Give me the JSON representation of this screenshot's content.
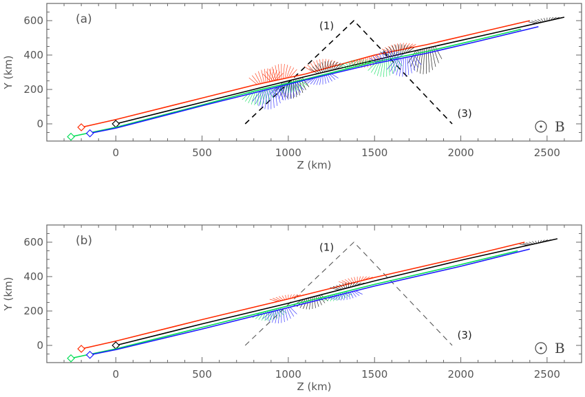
{
  "chart_data": [
    {
      "type": "line",
      "panel_label": "(a)",
      "xlabel": "Z (km)",
      "ylabel": "Y (km)",
      "xlim": [
        -400,
        2700
      ],
      "ylim": [
        -100,
        700
      ],
      "xticks": [
        0,
        500,
        1000,
        1500,
        2000,
        2500
      ],
      "yticks": [
        0,
        200,
        400,
        600
      ],
      "grid": false,
      "field_label": "B",
      "field_symbol": "out-of-plane (dot in circle)",
      "guide_lines": {
        "style": "dashed",
        "color": "#000000",
        "points": [
          [
            750,
            0
          ],
          [
            1380,
            600
          ],
          [
            1950,
            0
          ]
        ],
        "labels": [
          {
            "text": "(1)",
            "z": 1180,
            "y": 570
          },
          {
            "text": "(3)",
            "z": 1980,
            "y": 60
          }
        ]
      },
      "series": [
        {
          "color": "#ff2a00",
          "start_marker": "diamond",
          "points": [
            [
              -200,
              -20
            ],
            [
              0,
              25
            ],
            [
              500,
              150
            ],
            [
              800,
              225
            ],
            [
              1100,
              290
            ],
            [
              1500,
              400
            ],
            [
              1800,
              460
            ],
            [
              2100,
              530
            ],
            [
              2400,
              600
            ]
          ],
          "spikes": [
            [
              880,
              80
            ],
            [
              960,
              90
            ],
            [
              1200,
              60
            ],
            [
              1460,
              -60
            ],
            [
              1650,
              40
            ]
          ]
        },
        {
          "color": "#000000",
          "start_marker": "diamond",
          "points": [
            [
              0,
              0
            ],
            [
              500,
              125
            ],
            [
              800,
              200
            ],
            [
              1100,
              275
            ],
            [
              1500,
              370
            ],
            [
              1800,
              440
            ],
            [
              2200,
              530
            ],
            [
              2600,
              620
            ]
          ],
          "spikes": [
            [
              1030,
              -110
            ],
            [
              1230,
              60
            ],
            [
              1640,
              60
            ],
            [
              1800,
              -150
            ],
            [
              2500,
              20
            ]
          ]
        },
        {
          "color": "#00dd55",
          "start_marker": "diamond",
          "points": [
            [
              -260,
              -75
            ],
            [
              0,
              -20
            ],
            [
              500,
              110
            ],
            [
              800,
              190
            ],
            [
              1100,
              260
            ],
            [
              1500,
              360
            ],
            [
              1800,
              420
            ],
            [
              2100,
              490
            ],
            [
              2350,
              550
            ]
          ],
          "spikes": [
            [
              840,
              -90
            ],
            [
              1020,
              -60
            ],
            [
              1400,
              40
            ],
            [
              1570,
              -100
            ]
          ]
        },
        {
          "color": "#1a1aff",
          "start_marker": "diamond",
          "points": [
            [
              -150,
              -55
            ],
            [
              0,
              -25
            ],
            [
              500,
              105
            ],
            [
              800,
              180
            ],
            [
              1100,
              255
            ],
            [
              1500,
              350
            ],
            [
              1800,
              410
            ],
            [
              2100,
              480
            ],
            [
              2450,
              565
            ]
          ],
          "spikes": [
            [
              900,
              -120
            ],
            [
              1000,
              -90
            ],
            [
              1200,
              -50
            ],
            [
              1580,
              60
            ],
            [
              1680,
              -110
            ]
          ]
        }
      ]
    },
    {
      "type": "line",
      "panel_label": "(b)",
      "xlabel": "Z (km)",
      "ylabel": "Y (km)",
      "xlim": [
        -400,
        2700
      ],
      "ylim": [
        -100,
        700
      ],
      "xticks": [
        0,
        500,
        1000,
        1500,
        2000,
        2500
      ],
      "yticks": [
        0,
        200,
        400,
        600
      ],
      "grid": false,
      "field_label": "B",
      "field_symbol": "out-of-plane (dot in circle)",
      "guide_lines": {
        "style": "dashed",
        "color": "#555555",
        "points": [
          [
            750,
            0
          ],
          [
            1380,
            600
          ],
          [
            1950,
            0
          ]
        ],
        "labels": [
          {
            "text": "(1)",
            "z": 1180,
            "y": 570
          },
          {
            "text": "(3)",
            "z": 1980,
            "y": 60
          }
        ]
      },
      "series": [
        {
          "color": "#ff2a00",
          "start_marker": "diamond",
          "points": [
            [
              -200,
              -20
            ],
            [
              0,
              25
            ],
            [
              500,
              150
            ],
            [
              1000,
              270
            ],
            [
              1500,
              395
            ],
            [
              2000,
              510
            ],
            [
              2370,
              600
            ]
          ],
          "spikes": [
            [
              1000,
              25
            ],
            [
              1400,
              30
            ]
          ]
        },
        {
          "color": "#000000",
          "start_marker": "diamond",
          "points": [
            [
              0,
              0
            ],
            [
              500,
              125
            ],
            [
              1000,
              245
            ],
            [
              1500,
              375
            ],
            [
              2000,
              495
            ],
            [
              2560,
              620
            ]
          ],
          "spikes": [
            [
              1140,
              -70
            ],
            [
              1350,
              30
            ],
            [
              2450,
              15
            ]
          ]
        },
        {
          "color": "#00dd55",
          "start_marker": "diamond",
          "points": [
            [
              -260,
              -75
            ],
            [
              0,
              -20
            ],
            [
              500,
              105
            ],
            [
              1000,
              230
            ],
            [
              1500,
              355
            ],
            [
              2000,
              470
            ],
            [
              2330,
              550
            ]
          ],
          "spikes": [
            [
              900,
              -60
            ],
            [
              1280,
              -40
            ]
          ]
        },
        {
          "color": "#1a1aff",
          "start_marker": "diamond",
          "points": [
            [
              -150,
              -55
            ],
            [
              0,
              -25
            ],
            [
              500,
              95
            ],
            [
              1000,
              220
            ],
            [
              1500,
              345
            ],
            [
              2000,
              460
            ],
            [
              2400,
              560
            ]
          ],
          "spikes": [
            [
              960,
              -80
            ],
            [
              1340,
              -40
            ]
          ]
        }
      ]
    }
  ]
}
